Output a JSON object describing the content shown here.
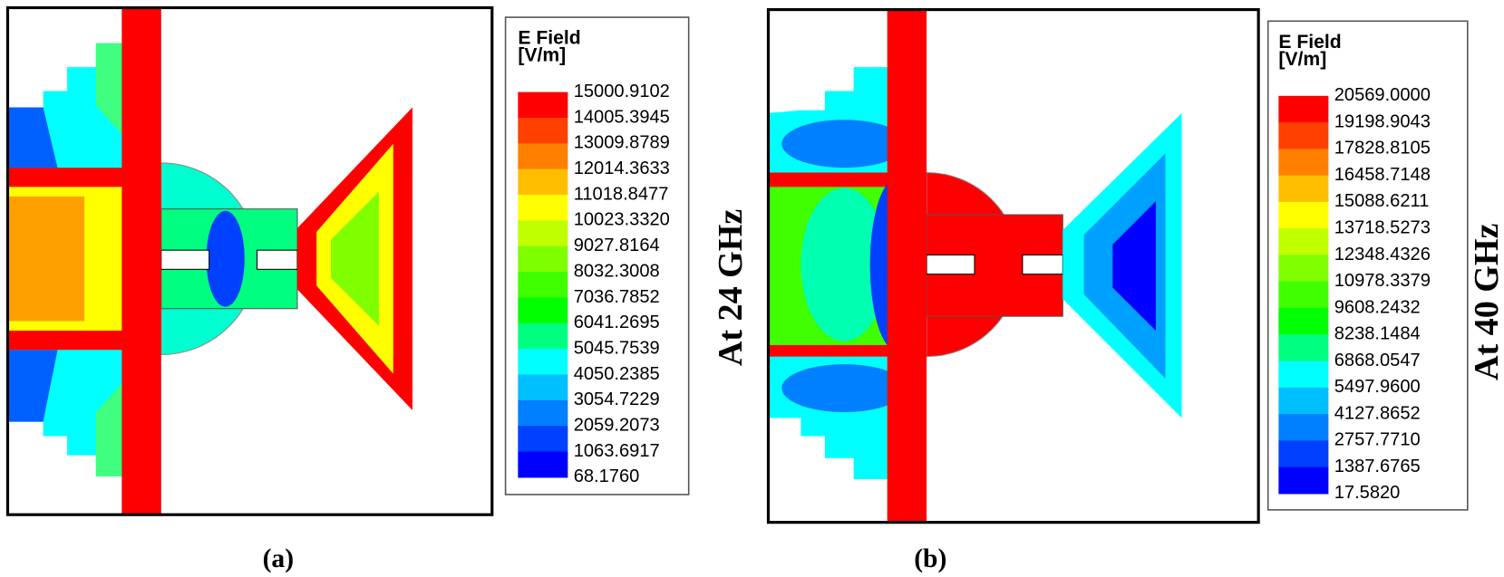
{
  "panels": [
    {
      "legend": {
        "title": "E Field",
        "unit": "[V/m]",
        "labels": [
          "15000.9102",
          "14005.3945",
          "13009.8789",
          "12014.3633",
          "11018.8477",
          "10023.3320",
          "9027.8164",
          "8032.3008",
          "7036.7852",
          "6041.2695",
          "5045.7539",
          "4050.2385",
          "3054.7229",
          "2059.2073",
          "1063.6917",
          "68.1760"
        ]
      },
      "side_label": "At 24 GHz",
      "caption": "(a)"
    },
    {
      "legend": {
        "title": "E Field",
        "unit": "[V/m]",
        "labels": [
          "20569.0000",
          "19198.9043",
          "17828.8105",
          "16458.7148",
          "15088.6211",
          "13718.5273",
          "12348.4326",
          "10978.3379",
          "9608.2432",
          "8238.1484",
          "6868.0547",
          "5497.9600",
          "4127.8652",
          "2757.7710",
          "1387.6765",
          "17.5820"
        ]
      },
      "side_label": "At 40 GHz",
      "caption": "(b)"
    }
  ]
}
